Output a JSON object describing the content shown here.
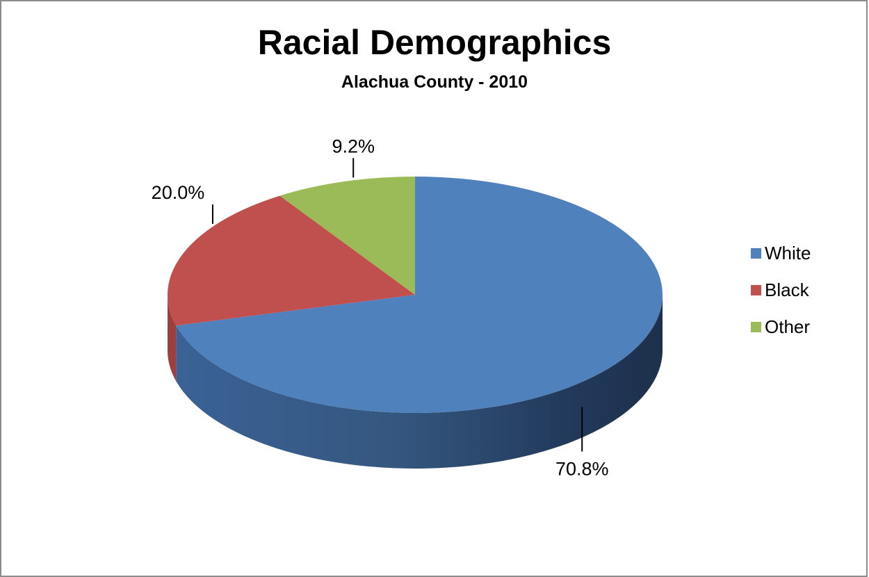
{
  "chart_data": {
    "type": "pie",
    "title": "Racial Demographics",
    "subtitle": "Alachua County - 2010",
    "slices": [
      {
        "label": "White",
        "value": 70.8,
        "display": "70.8%",
        "color": "#4f81bd",
        "side_dark": "#1f3454",
        "side_light": "#3c6394"
      },
      {
        "label": "Black",
        "value": 20.0,
        "display": "20.0%",
        "color": "#c0504d",
        "side_dark": "#7a2d2b",
        "side_light": "#9d3f3c"
      },
      {
        "label": "Other",
        "value": 9.2,
        "display": "9.2%",
        "color": "#9bbb59",
        "side_dark": "#5e7434",
        "side_light": "#7c9644"
      }
    ],
    "legend_position": "right"
  }
}
